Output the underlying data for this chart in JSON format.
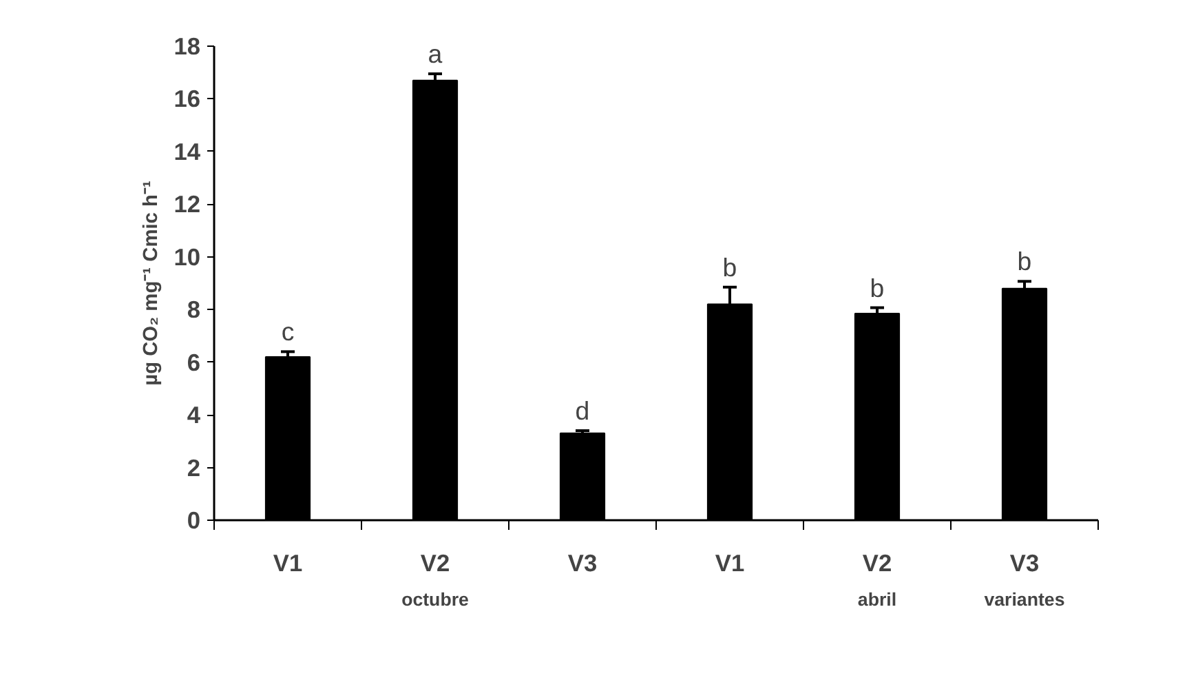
{
  "chart_data": {
    "type": "bar",
    "ylabel": "µg CO₂ mg⁻¹ Cmic h⁻¹",
    "categories": [
      "V1",
      "V2",
      "V3",
      "V1",
      "V2",
      "V3"
    ],
    "values": [
      6.2,
      16.7,
      3.3,
      8.2,
      7.85,
      8.8
    ],
    "errors": [
      0.2,
      0.25,
      0.1,
      0.65,
      0.22,
      0.27
    ],
    "color": "#000000",
    "ylim": [
      0,
      18
    ],
    "yticks": [
      0,
      2,
      4,
      6,
      8,
      10,
      12,
      14,
      16,
      18
    ],
    "grid": false,
    "xlabel": "variantes",
    "annotations": [
      {
        "text": "c",
        "y": 6.4
      },
      {
        "text": "a",
        "y": 16.95
      },
      {
        "text": "d",
        "y": 3.4
      },
      {
        "text": "b",
        "y": 8.85
      },
      {
        "text": "b",
        "y": 8.07
      },
      {
        "text": "b",
        "y": 9.07
      },
      "octubre",
      "abril"
    ]
  }
}
